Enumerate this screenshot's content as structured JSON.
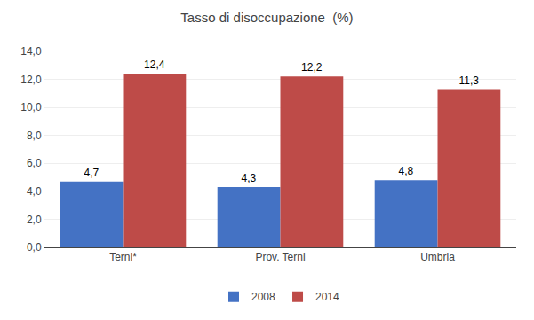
{
  "chart_data": {
    "type": "bar",
    "title": "Tasso di disoccupazione  (%)",
    "categories": [
      "Terni*",
      "Prov. Terni",
      "Umbria"
    ],
    "series": [
      {
        "name": "2008",
        "color": "#4472C4",
        "values": [
          4.7,
          4.3,
          4.8
        ],
        "value_labels": [
          "4,7",
          "4,3",
          "4,8"
        ]
      },
      {
        "name": "2014",
        "color": "#BE4B48",
        "values": [
          12.4,
          12.2,
          11.3
        ],
        "value_labels": [
          "12,4",
          "12,2",
          "11,3"
        ]
      }
    ],
    "ylim": [
      0,
      14.5
    ],
    "yticks": [
      {
        "value": 0,
        "label": "0,0"
      },
      {
        "value": 2,
        "label": "2,0"
      },
      {
        "value": 4,
        "label": "4,0"
      },
      {
        "value": 6,
        "label": "6,0"
      },
      {
        "value": 8,
        "label": "8,0"
      },
      {
        "value": 10,
        "label": "10,0"
      },
      {
        "value": 12,
        "label": "12,0"
      },
      {
        "value": 14,
        "label": "14,0"
      }
    ],
    "grid": true,
    "legend": "bottom",
    "data_labels": true
  }
}
